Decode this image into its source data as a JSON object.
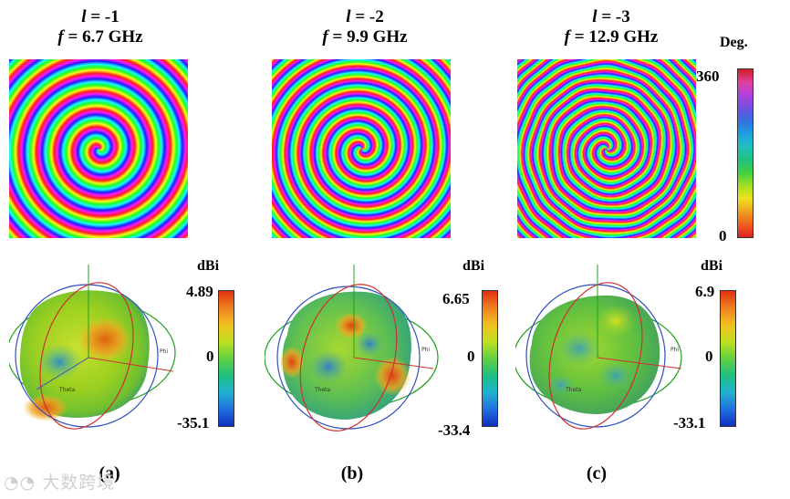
{
  "panels": [
    {
      "l_label": "l",
      "l_value": "= -1",
      "f_label": "f",
      "f_value": "= 6.7 GHz",
      "gain_unit": "dBi",
      "gain_max": "4.89",
      "gain_zero": "0",
      "gain_min": "-35.1",
      "sublabel": "(a)",
      "theta_label": "Theta",
      "phi_label": "Phi"
    },
    {
      "l_label": "l",
      "l_value": "= -2",
      "f_label": "f",
      "f_value": "= 9.9 GHz",
      "gain_unit": "dBi",
      "gain_max": "6.65",
      "gain_zero": "0",
      "gain_min": "-33.4",
      "sublabel": "(b)",
      "theta_label": "Theta",
      "phi_label": "Phi"
    },
    {
      "l_label": "l",
      "l_value": "= -3",
      "f_label": "f",
      "f_value": "= 12.9 GHz",
      "gain_unit": "dBi",
      "gain_max": "6.9",
      "gain_zero": "0",
      "gain_min": "-33.1",
      "sublabel": "(c)",
      "theta_label": "Theta",
      "phi_label": "Phi"
    }
  ],
  "phase_colorbar": {
    "unit": "Deg.",
    "max": "360",
    "min": "0"
  },
  "watermark": "大数跨境",
  "colors": {
    "spiral_palette": "hsl rainbow",
    "gain_high": "#e06010",
    "gain_mid": "#9bd020",
    "gain_low": "#1030c0"
  }
}
